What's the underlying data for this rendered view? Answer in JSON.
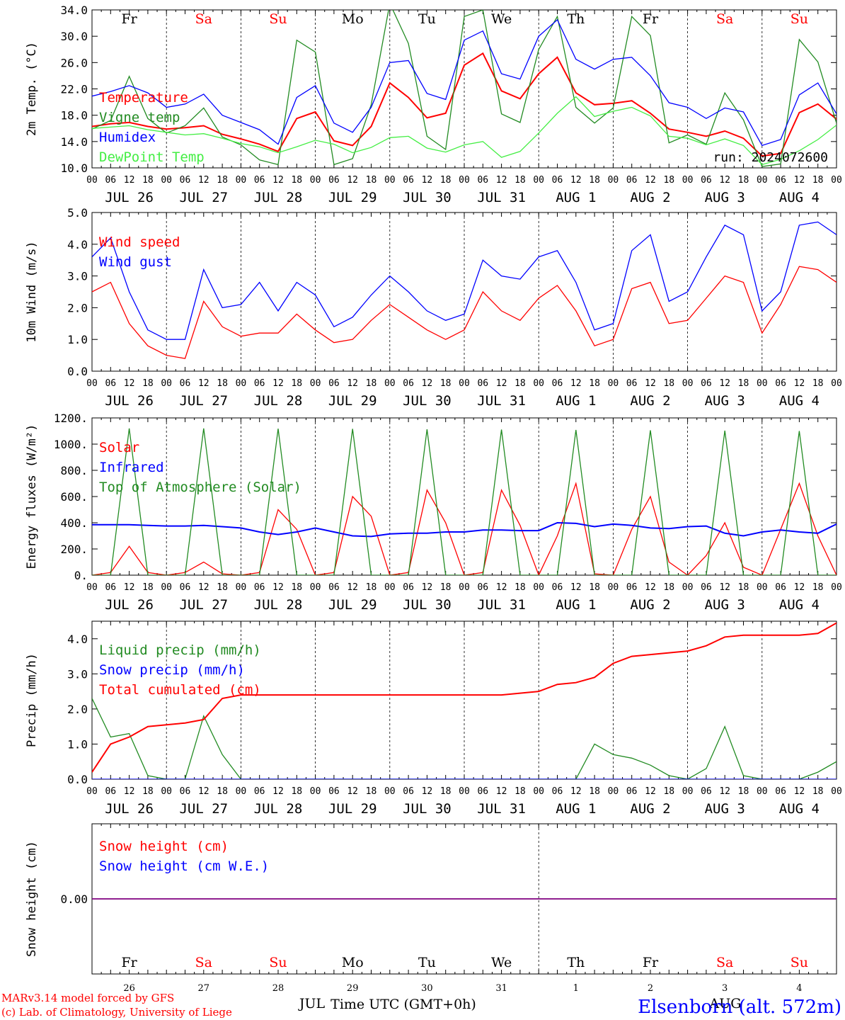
{
  "colors": {
    "red": "#ff0000",
    "green": "#228b22",
    "blue": "#0000ff",
    "lightgreen": "#44ee44",
    "purple": "#800080",
    "black": "#000000"
  },
  "time_axis": {
    "hour_labels": [
      "00",
      "06",
      "12",
      "18"
    ],
    "end_label": "00",
    "date_labels": [
      "JUL 26",
      "JUL 27",
      "JUL 28",
      "JUL 29",
      "JUL 30",
      "JUL 31",
      "AUG  1",
      "AUG  2",
      "AUG  3",
      "AUG  4"
    ],
    "weekdays": [
      "Fr",
      "Sa",
      "Su",
      "Mo",
      "Tu",
      "We",
      "Th",
      "Fr",
      "Sa",
      "Su"
    ],
    "weekend_flags": [
      false,
      true,
      true,
      false,
      false,
      false,
      false,
      false,
      true,
      true
    ],
    "day_numbers": [
      "26",
      "27",
      "28",
      "29",
      "30",
      "31",
      "1",
      "2",
      "3",
      "4"
    ],
    "month_labels": {
      "jul": "JUL",
      "aug": "AUG"
    },
    "xlabel": "Time UTC (GMT+0h)"
  },
  "footer": {
    "credit1": "MARv3.14 model forced by GFS",
    "credit2": "(c) Lab. of Climatology, University of Liege",
    "station": "Elsenborn (alt. 572m)"
  },
  "chart_data": [
    {
      "type": "line",
      "id": "temp",
      "ylabel": "2m Temp. (°C)",
      "ylim": [
        10,
        34
      ],
      "yticks": [
        10,
        14,
        18,
        22,
        26,
        30,
        34
      ],
      "ytick_labels": [
        "10.0",
        "14.0",
        "18.0",
        "22.0",
        "26.0",
        "30.0",
        "34.0"
      ],
      "annotation": "run: 2024072600",
      "x_hours": [
        0,
        6,
        12,
        18,
        24,
        30,
        36,
        42,
        48,
        54,
        60,
        66,
        72,
        78,
        84,
        90,
        96,
        102,
        108,
        114,
        120,
        126,
        132,
        138,
        144,
        150,
        156,
        162,
        168,
        174,
        180,
        186,
        192,
        198,
        204,
        210,
        216,
        222,
        228,
        234,
        240
      ],
      "series": [
        {
          "name": "Temperature",
          "color": "red",
          "values": [
            16.3,
            16.7,
            16.9,
            16.3,
            15.9,
            16.1,
            16.4,
            15.1,
            14.4,
            13.6,
            12.5,
            17.5,
            18.5,
            14.1,
            13.4,
            16.3,
            22.9,
            20.7,
            17.6,
            18.3,
            25.6,
            27.4,
            21.7,
            20.5,
            24.3,
            26.8,
            21.4,
            19.6,
            19.8,
            20.2,
            18.3,
            15.9,
            15.4,
            14.8,
            15.6,
            14.5,
            11.8,
            12.2,
            18.4,
            19.7,
            17.4
          ]
        },
        {
          "name": "Vigne temp",
          "color": "green",
          "values": [
            15.9,
            17.2,
            23.9,
            17.5,
            15.3,
            16.4,
            19.1,
            14.7,
            13.5,
            11.2,
            10.5,
            29.4,
            27.6,
            10.5,
            11.4,
            19.6,
            35.0,
            28.9,
            14.8,
            12.8,
            33.0,
            34.0,
            18.2,
            16.9,
            28.0,
            33.0,
            19.2,
            16.8,
            19.1,
            33.0,
            30.1,
            13.8,
            15.0,
            13.6,
            21.4,
            17.3,
            10.2,
            10.6,
            29.5,
            26.1,
            16.8
          ]
        },
        {
          "name": "Humidex",
          "color": "blue",
          "values": [
            20.9,
            21.6,
            22.5,
            21.4,
            19.2,
            19.7,
            21.2,
            18.0,
            16.9,
            15.8,
            13.6,
            20.7,
            22.5,
            16.8,
            15.4,
            19.2,
            26.0,
            26.3,
            21.3,
            20.4,
            29.4,
            30.8,
            24.3,
            23.5,
            30.0,
            32.5,
            26.5,
            25.0,
            26.5,
            26.8,
            24.0,
            19.9,
            19.2,
            17.5,
            19.1,
            18.5,
            13.4,
            14.3,
            21.1,
            22.9,
            18.2
          ]
        },
        {
          "name": "DewPoint Temp",
          "color": "lightgreen",
          "values": [
            16.0,
            16.2,
            16.4,
            15.8,
            15.4,
            15.0,
            15.2,
            14.5,
            13.7,
            13.2,
            12.3,
            13.2,
            14.2,
            13.6,
            12.3,
            13.1,
            14.6,
            14.8,
            13.0,
            12.4,
            13.5,
            14.0,
            11.6,
            12.5,
            15.3,
            18.3,
            20.8,
            17.8,
            18.6,
            19.2,
            17.9,
            14.8,
            14.5,
            13.5,
            14.4,
            13.4,
            10.5,
            11.3,
            12.6,
            14.3,
            16.5
          ]
        }
      ]
    },
    {
      "type": "line",
      "id": "wind",
      "ylabel": "10m Wind (m/s)",
      "ylim": [
        0,
        5
      ],
      "yticks": [
        0,
        1,
        2,
        3,
        4,
        5
      ],
      "ytick_labels": [
        "0.0",
        "1.0",
        "2.0",
        "3.0",
        "4.0",
        "5.0"
      ],
      "x_hours": [
        0,
        6,
        12,
        18,
        24,
        30,
        36,
        42,
        48,
        54,
        60,
        66,
        72,
        78,
        84,
        90,
        96,
        102,
        108,
        114,
        120,
        126,
        132,
        138,
        144,
        150,
        156,
        162,
        168,
        174,
        180,
        186,
        192,
        198,
        204,
        210,
        216,
        222,
        228,
        234,
        240
      ],
      "series": [
        {
          "name": "Wind speed",
          "color": "red",
          "values": [
            2.5,
            2.8,
            1.5,
            0.8,
            0.5,
            0.4,
            2.2,
            1.4,
            1.1,
            1.2,
            1.2,
            1.8,
            1.3,
            0.9,
            1.0,
            1.6,
            2.1,
            1.7,
            1.3,
            1.0,
            1.3,
            2.5,
            1.9,
            1.6,
            2.3,
            2.7,
            1.9,
            0.8,
            1.0,
            2.6,
            2.8,
            1.5,
            1.6,
            2.3,
            3.0,
            2.8,
            1.2,
            2.1,
            3.3,
            3.2,
            2.8
          ]
        },
        {
          "name": "Wind gust",
          "color": "blue",
          "values": [
            3.6,
            4.2,
            2.5,
            1.3,
            1.0,
            1.0,
            3.2,
            2.0,
            2.1,
            2.8,
            1.9,
            2.8,
            2.4,
            1.4,
            1.7,
            2.4,
            3.0,
            2.5,
            1.9,
            1.6,
            1.8,
            3.5,
            3.0,
            2.9,
            3.6,
            3.8,
            2.8,
            1.3,
            1.5,
            3.8,
            4.3,
            2.2,
            2.5,
            3.6,
            4.6,
            4.3,
            1.9,
            2.5,
            4.6,
            4.7,
            4.3
          ]
        }
      ]
    },
    {
      "type": "line",
      "id": "energy",
      "ylabel": "Energy fluxes (W/m²)",
      "ylim": [
        0,
        1200
      ],
      "yticks": [
        0,
        200,
        400,
        600,
        800,
        1000,
        1200
      ],
      "ytick_labels": [
        "0.",
        "200.",
        "400.",
        "600.",
        "800.",
        "1000.",
        "1200."
      ],
      "x_hours": [
        0,
        6,
        12,
        18,
        24,
        30,
        36,
        42,
        48,
        54,
        60,
        66,
        72,
        78,
        84,
        90,
        96,
        102,
        108,
        114,
        120,
        126,
        132,
        138,
        144,
        150,
        156,
        162,
        168,
        174,
        180,
        186,
        192,
        198,
        204,
        210,
        216,
        222,
        228,
        234,
        240
      ],
      "series": [
        {
          "name": "Solar",
          "color": "red",
          "values": [
            0,
            20,
            220,
            20,
            0,
            20,
            100,
            10,
            0,
            20,
            500,
            350,
            0,
            20,
            600,
            450,
            0,
            20,
            650,
            400,
            0,
            20,
            650,
            380,
            0,
            300,
            700,
            10,
            0,
            350,
            600,
            100,
            0,
            150,
            400,
            60,
            0,
            350,
            700,
            300,
            0
          ]
        },
        {
          "name": "Infrared",
          "color": "blue",
          "values": [
            385,
            385,
            385,
            380,
            375,
            375,
            380,
            370,
            360,
            330,
            310,
            330,
            360,
            330,
            300,
            295,
            315,
            320,
            320,
            330,
            330,
            345,
            345,
            340,
            340,
            400,
            395,
            370,
            390,
            380,
            360,
            355,
            370,
            375,
            320,
            300,
            330,
            345,
            330,
            320,
            390
          ]
        },
        {
          "name": "Top of Atmosphere (Solar)",
          "color": "green",
          "values": [
            0,
            0,
            1120,
            0,
            0,
            0,
            1120,
            0,
            0,
            0,
            1118,
            0,
            0,
            0,
            1116,
            0,
            0,
            0,
            1113,
            0,
            0,
            0,
            1111,
            0,
            0,
            0,
            1108,
            0,
            0,
            0,
            1106,
            0,
            0,
            0,
            1103,
            0,
            0,
            0,
            1100,
            0,
            0
          ]
        }
      ]
    },
    {
      "type": "line",
      "id": "precip",
      "ylabel": "Precip (mm/h)",
      "ylim": [
        0,
        4.5
      ],
      "yticks": [
        0,
        1,
        2,
        3,
        4
      ],
      "ytick_labels": [
        "0.0",
        "1.0",
        "2.0",
        "3.0",
        "4.0"
      ],
      "x_hours": [
        0,
        6,
        12,
        18,
        24,
        30,
        36,
        42,
        48,
        54,
        60,
        66,
        72,
        78,
        84,
        90,
        96,
        102,
        108,
        114,
        120,
        126,
        132,
        138,
        144,
        150,
        156,
        162,
        168,
        174,
        180,
        186,
        192,
        198,
        204,
        210,
        216,
        222,
        228,
        234,
        240
      ],
      "series": [
        {
          "name": "Liquid precip (mm/h)",
          "color": "green",
          "values": [
            2.3,
            1.2,
            1.3,
            0.1,
            0,
            0,
            1.8,
            0.7,
            0,
            0,
            0,
            0,
            0,
            0,
            0,
            0,
            0,
            0,
            0,
            0,
            0,
            0,
            0,
            0,
            0,
            0,
            0,
            1.0,
            0.7,
            0.6,
            0.4,
            0.1,
            0,
            0.3,
            1.5,
            0.1,
            0,
            0,
            0,
            0.2,
            0.5
          ]
        },
        {
          "name": "Snow precip (mm/h)",
          "color": "blue",
          "values": [
            0,
            0,
            0,
            0,
            0,
            0,
            0,
            0,
            0,
            0,
            0,
            0,
            0,
            0,
            0,
            0,
            0,
            0,
            0,
            0,
            0,
            0,
            0,
            0,
            0,
            0,
            0,
            0,
            0,
            0,
            0,
            0,
            0,
            0,
            0,
            0,
            0,
            0,
            0,
            0,
            0
          ]
        },
        {
          "name": "Total cumulated (cm)",
          "color": "red",
          "values": [
            0.2,
            1.0,
            1.2,
            1.5,
            1.55,
            1.6,
            1.7,
            2.3,
            2.4,
            2.4,
            2.4,
            2.4,
            2.4,
            2.4,
            2.4,
            2.4,
            2.4,
            2.4,
            2.4,
            2.4,
            2.4,
            2.4,
            2.4,
            2.45,
            2.5,
            2.7,
            2.75,
            2.9,
            3.3,
            3.5,
            3.55,
            3.6,
            3.65,
            3.8,
            4.05,
            4.1,
            4.1,
            4.1,
            4.1,
            4.15,
            4.45
          ]
        }
      ]
    },
    {
      "type": "line",
      "id": "snow",
      "ylabel": "Snow height (cm)",
      "ylim": [
        -1,
        1
      ],
      "yticks": [
        0
      ],
      "ytick_labels": [
        "0.00"
      ],
      "x_hours": [
        0,
        240
      ],
      "series": [
        {
          "name": "Snow height (cm)",
          "color": "red",
          "values": [
            0,
            0
          ]
        },
        {
          "name": "Snow height (cm W.E.)",
          "color": "blue",
          "values": [
            0,
            0
          ]
        }
      ]
    }
  ]
}
